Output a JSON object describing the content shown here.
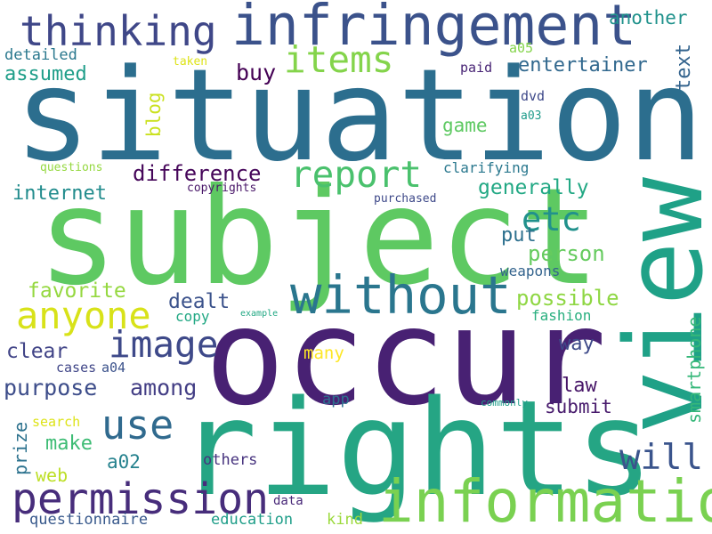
{
  "canvas": {
    "background": "#ffffff"
  },
  "words": [
    {
      "text": "situation",
      "color": "#2c6e8e"
    },
    {
      "text": "subject",
      "color": "#5ec962"
    },
    {
      "text": "occur",
      "color": "#482173"
    },
    {
      "text": "rights",
      "color": "#25a584"
    },
    {
      "text": "view",
      "color": "#1fa187"
    },
    {
      "text": "information",
      "color": "#7ad151"
    },
    {
      "text": "infringement",
      "color": "#3b528b"
    },
    {
      "text": "without",
      "color": "#2a768e"
    },
    {
      "text": "permission",
      "color": "#472d7b"
    },
    {
      "text": "thinking",
      "color": "#3f4788"
    },
    {
      "text": "anyone",
      "color": "#d8e219"
    },
    {
      "text": "report",
      "color": "#4ac16d"
    },
    {
      "text": "image",
      "color": "#3e4989"
    },
    {
      "text": "items",
      "color": "#84d44b"
    },
    {
      "text": "use",
      "color": "#306a8e"
    },
    {
      "text": "etc",
      "color": "#21918c"
    },
    {
      "text": "will",
      "color": "#3a548c"
    },
    {
      "text": "purpose",
      "color": "#3d4d8a"
    },
    {
      "text": "among",
      "color": "#433e85"
    },
    {
      "text": "difference",
      "color": "#450559"
    },
    {
      "text": "favorite",
      "color": "#95d840"
    },
    {
      "text": "generally",
      "color": "#22a884"
    },
    {
      "text": "internet",
      "color": "#228c8d"
    },
    {
      "text": "assumed",
      "color": "#1f9e89"
    },
    {
      "text": "entertainer",
      "color": "#31688e"
    },
    {
      "text": "another",
      "color": "#20928c"
    },
    {
      "text": "detailed",
      "color": "#2a788e"
    },
    {
      "text": "text",
      "color": "#33638d"
    },
    {
      "text": "buy",
      "color": "#440154"
    },
    {
      "text": "blog",
      "color": "#cae11f"
    },
    {
      "text": "person",
      "color": "#65cb5e"
    },
    {
      "text": "possible",
      "color": "#8fd744"
    },
    {
      "text": "smartphone",
      "color": "#35b779"
    },
    {
      "text": "dealt",
      "color": "#3b528b"
    },
    {
      "text": "clear",
      "color": "#414487"
    },
    {
      "text": "put",
      "color": "#2d708e"
    },
    {
      "text": "way",
      "color": "#3e4a89"
    },
    {
      "text": "law",
      "color": "#481668"
    },
    {
      "text": "make",
      "color": "#3dbc74"
    },
    {
      "text": "submit",
      "color": "#481b6d"
    },
    {
      "text": "a02",
      "color": "#26828e"
    },
    {
      "text": "prize",
      "color": "#2c728e"
    },
    {
      "text": "web",
      "color": "#bddf26"
    },
    {
      "text": "game",
      "color": "#5ec962"
    },
    {
      "text": "many",
      "color": "#fde725"
    },
    {
      "text": "copy",
      "color": "#22a884"
    },
    {
      "text": "fashion",
      "color": "#29af7f"
    },
    {
      "text": "weapons",
      "color": "#33638d"
    },
    {
      "text": "paid",
      "color": "#482475"
    },
    {
      "text": "a05",
      "color": "#84d44b"
    },
    {
      "text": "dvd",
      "color": "#3e4989"
    },
    {
      "text": "a03",
      "color": "#1e9b8a"
    },
    {
      "text": "clarifying",
      "color": "#2a788e"
    },
    {
      "text": "cases",
      "color": "#404688"
    },
    {
      "text": "a04",
      "color": "#3b528b"
    },
    {
      "text": "search",
      "color": "#dde318"
    },
    {
      "text": "app",
      "color": "#2d708e"
    },
    {
      "text": "others",
      "color": "#46327e"
    },
    {
      "text": "data",
      "color": "#482878"
    },
    {
      "text": "education",
      "color": "#1f9e89"
    },
    {
      "text": "kind",
      "color": "#9bd93c"
    },
    {
      "text": "questionnaire",
      "color": "#38598c"
    },
    {
      "text": "questions",
      "color": "#95d840"
    },
    {
      "text": "taken",
      "color": "#dde318"
    },
    {
      "text": "copyrights",
      "color": "#481668"
    },
    {
      "text": "purchased",
      "color": "#3e4989"
    },
    {
      "text": "example",
      "color": "#22a884"
    },
    {
      "text": "commonly",
      "color": "#1f9e89"
    }
  ]
}
